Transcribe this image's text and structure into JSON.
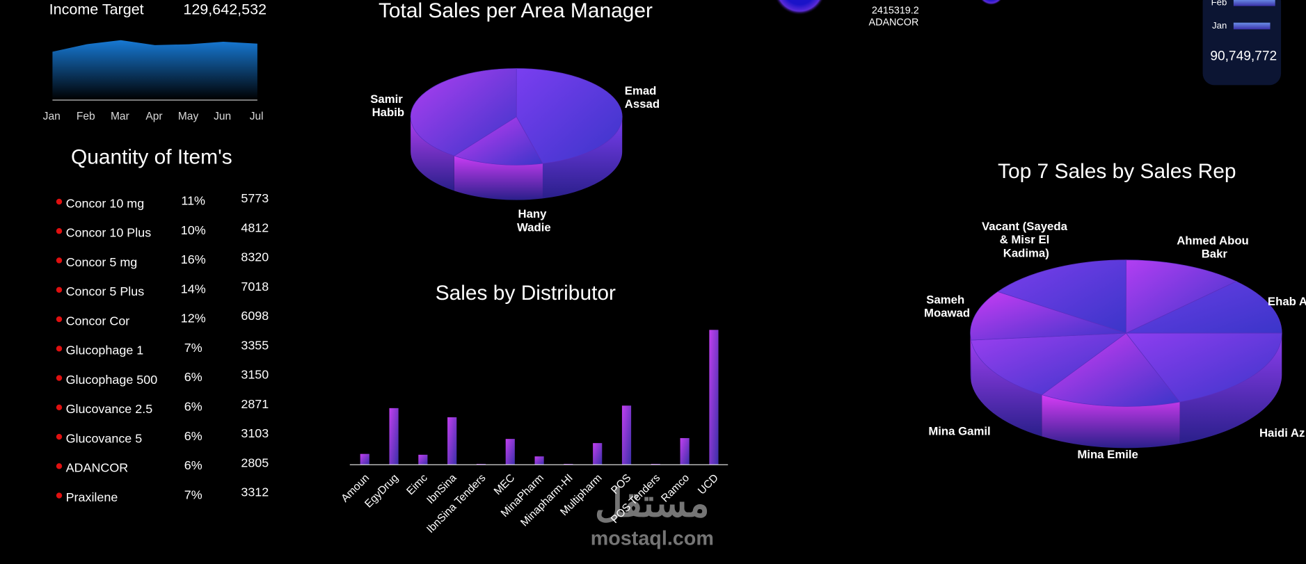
{
  "income_target": {
    "label": "Income Target",
    "value": "129,642,532"
  },
  "quantity_of_items": {
    "title": "Quantity of Item's",
    "rows": [
      [
        "Concor 10 mg",
        "11%",
        "5773"
      ],
      [
        "Concor 10 Plus",
        "10%",
        "4812"
      ],
      [
        "Concor 5 mg",
        "16%",
        "8320"
      ],
      [
        "Concor 5 Plus",
        "14%",
        "7018"
      ],
      [
        "Concor Cor",
        "12%",
        "6098"
      ],
      [
        "Glucophage 1",
        "7%",
        "3355"
      ],
      [
        "Glucophage 500",
        "6%",
        "3150"
      ],
      [
        "Glucovance 2.5",
        "6%",
        "2871"
      ],
      [
        "Glucovance 5",
        "6%",
        "3103"
      ],
      [
        "ADANCOR",
        "6%",
        "2805"
      ],
      [
        "Praxilene",
        "7%",
        "3312"
      ]
    ]
  },
  "top_bubble": {
    "value": "2415319.2",
    "label": "ADANCOR"
  },
  "monthly_panel": {
    "total": "90,749,772"
  },
  "watermark": {
    "logo": "مستقل",
    "site": "mostaql.com"
  },
  "chart_data": [
    {
      "type": "area",
      "categories": [
        "Jan",
        "Feb",
        "Mar",
        "Apr",
        "May",
        "Jun",
        "Jul"
      ],
      "values": [
        15.5,
        17.9,
        19.2,
        17.6,
        17.9,
        18.7,
        18.1
      ],
      "color": "#1779d4"
    },
    {
      "type": "pie",
      "three_d": true,
      "title": "Total Sales per Area Manager",
      "categories": [
        "Emad Assad",
        "Hany Wadie",
        "Samir Habib"
      ],
      "values": [
        46,
        14,
        40
      ],
      "colors": [
        "#7a3ef0",
        "#c83cf4",
        "#b03ff2"
      ]
    },
    {
      "type": "bar",
      "title": "Sales by Distributor",
      "categories": [
        "Amoun",
        "EgyDrug",
        "Eimc",
        "IbnSina",
        "IbnSina Tenders",
        "MEC",
        "MinaPharm",
        "Minapharm-HI",
        "Multipharm",
        "POS",
        "POS Tenders",
        "Ramco",
        "UCD"
      ],
      "values": [
        13,
        68,
        12,
        57,
        1,
        31,
        10,
        1,
        26,
        71,
        1,
        32,
        162
      ],
      "color": "#c23ff0"
    },
    {
      "type": "pie",
      "three_d": true,
      "title": "Top 7 Sales by Sales Rep",
      "categories": [
        "Ahmed Abou Bakr",
        "Ehab A",
        "Haidi Az",
        "Mina Emile",
        "Mina Gamil",
        "Sameh Moawad",
        "Vacant  (Sayeda & Misr El Kadima)"
      ],
      "values": [
        12.5,
        12.5,
        19.4,
        14.7,
        14.4,
        11.1,
        15.4
      ],
      "colors": [
        "#b23ef2",
        "#6a3ee6",
        "#8e3ef0",
        "#d63cf5",
        "#9b3ff0",
        "#c83cf4",
        "#7c3eec"
      ]
    },
    {
      "type": "hbar",
      "categories": [
        "Feb",
        "Jan"
      ],
      "values": [
        50,
        44
      ],
      "color": "#6b8fe8"
    }
  ]
}
